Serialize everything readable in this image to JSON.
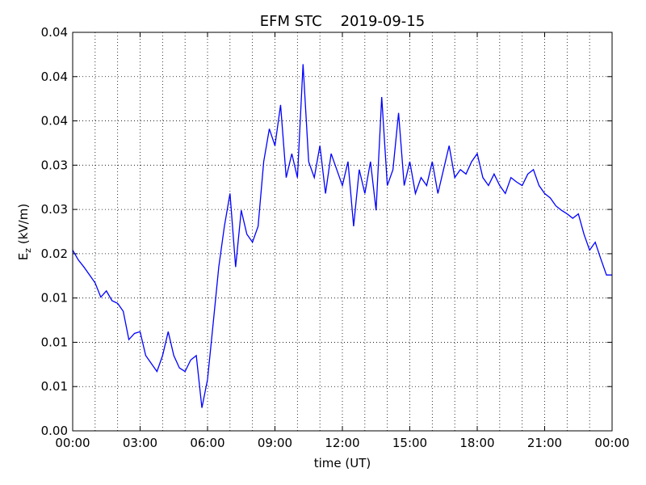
{
  "chart_data": {
    "type": "line",
    "title": "EFM STC    2019-09-15",
    "xlabel": "time (UT)",
    "ylabel": {
      "main": "E",
      "sub": "z",
      "rest": " (kV/m)"
    },
    "xlim": [
      0,
      24
    ],
    "xticks": [
      {
        "value": 0,
        "label": "00:00"
      },
      {
        "value": 3,
        "label": "03:00"
      },
      {
        "value": 6,
        "label": "06:00"
      },
      {
        "value": 9,
        "label": "09:00"
      },
      {
        "value": 12,
        "label": "12:00"
      },
      {
        "value": 15,
        "label": "15:00"
      },
      {
        "value": 18,
        "label": "18:00"
      },
      {
        "value": 21,
        "label": "21:00"
      },
      {
        "value": 24,
        "label": "00:00"
      }
    ],
    "xminorticks": [
      1,
      2,
      4,
      5,
      7,
      8,
      10,
      11,
      13,
      14,
      16,
      17,
      19,
      20,
      22,
      23
    ],
    "ylim": [
      0,
      0.045
    ],
    "yticks": [
      {
        "value": 0,
        "label": "0.00"
      },
      {
        "value": 0.005,
        "label": "0.01"
      },
      0.01,
      {
        "value": 0.015,
        "label": "0.01"
      },
      0.02,
      {
        "value": 0.025,
        "label": "0.03"
      },
      0.03,
      {
        "value": 0.035,
        "label": "0.04"
      },
      0.04,
      {
        "value": 0.045,
        "label": "0.04"
      }
    ],
    "grid": true,
    "series": [
      {
        "color": "#0000ff",
        "x": [
          0,
          0.25,
          0.5,
          0.75,
          1,
          1.25,
          1.5,
          1.75,
          2,
          2.25,
          2.5,
          2.75,
          3,
          3.25,
          3.5,
          3.75,
          4,
          4.25,
          4.5,
          4.75,
          5,
          5.25,
          5.5,
          5.75,
          6,
          6.25,
          6.5,
          6.75,
          7,
          7.25,
          7.5,
          7.75,
          8,
          8.25,
          8.5,
          8.75,
          9,
          9.25,
          9.5,
          9.75,
          10,
          10.25,
          10.5,
          10.75,
          11,
          11.25,
          11.5,
          11.75,
          12,
          12.25,
          12.5,
          12.75,
          13,
          13.25,
          13.5,
          13.75,
          14,
          14.25,
          14.5,
          14.75,
          15,
          15.25,
          15.5,
          15.75,
          16,
          16.25,
          16.5,
          16.75,
          17,
          17.25,
          17.5,
          17.75,
          18,
          18.25,
          18.5,
          18.75,
          19,
          19.25,
          19.5,
          19.75,
          20,
          20.25,
          20.5,
          20.75,
          21,
          21.25,
          21.5,
          21.75,
          22,
          22.25,
          22.5,
          22.75,
          23,
          23.25,
          23.5,
          23.75,
          24
        ],
        "values": [
          0.0204,
          0.0193,
          0.0185,
          0.0176,
          0.0167,
          0.0151,
          0.0158,
          0.0147,
          0.0144,
          0.0135,
          0.0103,
          0.011,
          0.0112,
          0.0085,
          0.0076,
          0.0067,
          0.0085,
          0.0112,
          0.0085,
          0.0071,
          0.0067,
          0.008,
          0.0085,
          0.0026,
          0.0058,
          0.0121,
          0.0185,
          0.0231,
          0.0268,
          0.0185,
          0.0249,
          0.0222,
          0.0213,
          0.0231,
          0.0304,
          0.0341,
          0.0322,
          0.0368,
          0.0286,
          0.0313,
          0.0286,
          0.0414,
          0.0304,
          0.0286,
          0.0322,
          0.0268,
          0.0313,
          0.0295,
          0.0277,
          0.0304,
          0.0231,
          0.0295,
          0.0268,
          0.0304,
          0.0249,
          0.0377,
          0.0277,
          0.0295,
          0.0359,
          0.0277,
          0.0304,
          0.0268,
          0.0286,
          0.0277,
          0.0304,
          0.0268,
          0.0295,
          0.0322,
          0.0286,
          0.0295,
          0.029,
          0.0304,
          0.0313,
          0.0286,
          0.0277,
          0.029,
          0.0277,
          0.0268,
          0.0286,
          0.0281,
          0.0277,
          0.029,
          0.0295,
          0.0277,
          0.0268,
          0.0263,
          0.0254,
          0.0249,
          0.0245,
          0.024,
          0.0245,
          0.0222,
          0.0204,
          0.0213,
          0.0194,
          0.0176,
          0.0176
        ]
      }
    ]
  }
}
